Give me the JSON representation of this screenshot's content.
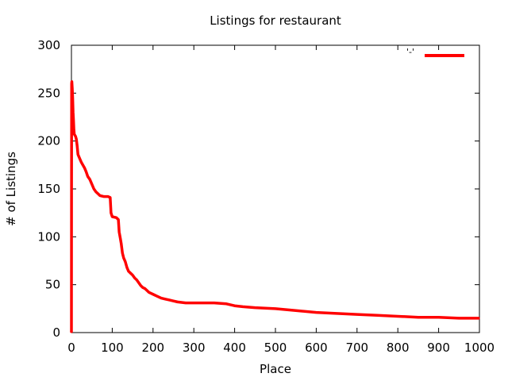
{
  "chart_data": {
    "type": "line",
    "title": "Listings for restaurant",
    "xlabel": "Place",
    "ylabel": "# of Listings",
    "xlim": [
      0,
      1000
    ],
    "ylim": [
      0,
      300
    ],
    "x_ticks": [
      0,
      100,
      200,
      300,
      400,
      500,
      600,
      700,
      800,
      900,
      1000
    ],
    "y_ticks": [
      0,
      50,
      100,
      150,
      200,
      250,
      300
    ],
    "grid": false,
    "legend": "top-right",
    "series": [
      {
        "name": "'-'",
        "color": "#ff0000",
        "points": [
          [
            0,
            0
          ],
          [
            0.2,
            130
          ],
          [
            0.5,
            260
          ],
          [
            1,
            262
          ],
          [
            2,
            255
          ],
          [
            3,
            245
          ],
          [
            4,
            230
          ],
          [
            5,
            222
          ],
          [
            6,
            212
          ],
          [
            7,
            207
          ],
          [
            10,
            205
          ],
          [
            12,
            202
          ],
          [
            14,
            195
          ],
          [
            16,
            186
          ],
          [
            20,
            182
          ],
          [
            24,
            178
          ],
          [
            28,
            175
          ],
          [
            32,
            172
          ],
          [
            36,
            168
          ],
          [
            40,
            163
          ],
          [
            45,
            160
          ],
          [
            50,
            155
          ],
          [
            55,
            150
          ],
          [
            60,
            147
          ],
          [
            65,
            145
          ],
          [
            70,
            143
          ],
          [
            80,
            142
          ],
          [
            90,
            142
          ],
          [
            95,
            141
          ],
          [
            97,
            125
          ],
          [
            100,
            121
          ],
          [
            110,
            120
          ],
          [
            115,
            118
          ],
          [
            117,
            105
          ],
          [
            120,
            98
          ],
          [
            122,
            93
          ],
          [
            125,
            83
          ],
          [
            128,
            78
          ],
          [
            132,
            74
          ],
          [
            136,
            68
          ],
          [
            140,
            64
          ],
          [
            145,
            62
          ],
          [
            150,
            60
          ],
          [
            155,
            57
          ],
          [
            160,
            55
          ],
          [
            165,
            52
          ],
          [
            170,
            49
          ],
          [
            175,
            47
          ],
          [
            180,
            46
          ],
          [
            185,
            44
          ],
          [
            190,
            42
          ],
          [
            200,
            40
          ],
          [
            210,
            38
          ],
          [
            220,
            36
          ],
          [
            230,
            35
          ],
          [
            240,
            34
          ],
          [
            250,
            33
          ],
          [
            260,
            32
          ],
          [
            280,
            31
          ],
          [
            300,
            31
          ],
          [
            350,
            31
          ],
          [
            380,
            30
          ],
          [
            400,
            28
          ],
          [
            420,
            27
          ],
          [
            450,
            26
          ],
          [
            500,
            25
          ],
          [
            550,
            23
          ],
          [
            600,
            21
          ],
          [
            650,
            20
          ],
          [
            700,
            19
          ],
          [
            750,
            18
          ],
          [
            800,
            17
          ],
          [
            850,
            16
          ],
          [
            900,
            16
          ],
          [
            950,
            15
          ],
          [
            1000,
            15
          ]
        ]
      }
    ]
  }
}
